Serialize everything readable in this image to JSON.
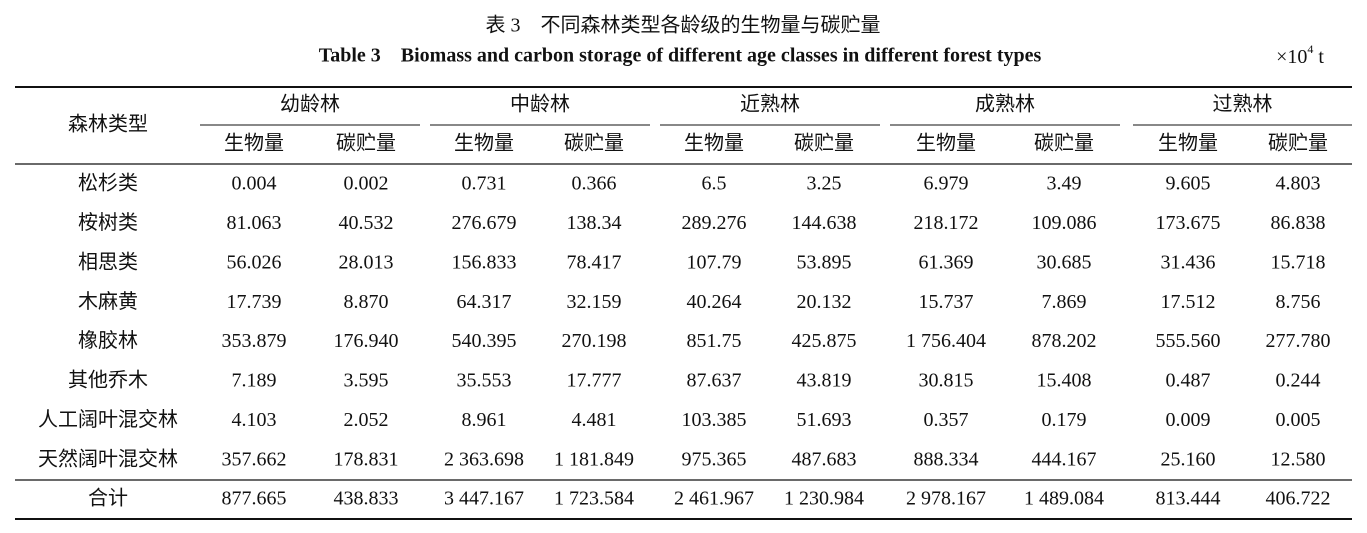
{
  "header": {
    "title": "表 3　不同森林类型各龄级的生物量与碳贮量",
    "subtitle": "Table 3　Biomass and carbon storage of different age classes in different forest types",
    "unit": {
      "prefix": "×10",
      "exponent": "4",
      "suffix": " t"
    }
  },
  "table": {
    "row_header": "森林类型",
    "groups": [
      "幼龄林",
      "中龄林",
      "近熟林",
      "成熟林",
      "过熟林"
    ],
    "subheaders": [
      "生物量",
      "碳贮量",
      "生物量",
      "碳贮量",
      "生物量",
      "碳贮量",
      "生物量",
      "碳贮量",
      "生物量",
      "碳贮量"
    ],
    "rows": [
      [
        "松杉类",
        "0.004",
        "0.002",
        "0.731",
        "0.366",
        "6.5",
        "3.25",
        "6.979",
        "3.49",
        "9.605",
        "4.803"
      ],
      [
        "桉树类",
        "81.063",
        "40.532",
        "276.679",
        "138.34",
        "289.276",
        "144.638",
        "218.172",
        "109.086",
        "173.675",
        "86.838"
      ],
      [
        "相思类",
        "56.026",
        "28.013",
        "156.833",
        "78.417",
        "107.79",
        "53.895",
        "61.369",
        "30.685",
        "31.436",
        "15.718"
      ],
      [
        "木麻黄",
        "17.739",
        "8.870",
        "64.317",
        "32.159",
        "40.264",
        "20.132",
        "15.737",
        "7.869",
        "17.512",
        "8.756"
      ],
      [
        "橡胶林",
        "353.879",
        "176.940",
        "540.395",
        "270.198",
        "851.75",
        "425.875",
        "1 756.404",
        "878.202",
        "555.560",
        "277.780"
      ],
      [
        "其他乔木",
        "7.189",
        "3.595",
        "35.553",
        "17.777",
        "87.637",
        "43.819",
        "30.815",
        "15.408",
        "0.487",
        "0.244"
      ],
      [
        "人工阔叶混交林",
        "4.103",
        "2.052",
        "8.961",
        "4.481",
        "103.385",
        "51.693",
        "0.357",
        "0.179",
        "0.009",
        "0.005"
      ],
      [
        "天然阔叶混交林",
        "357.662",
        "178.831",
        "2 363.698",
        "1 181.849",
        "975.365",
        "487.683",
        "888.334",
        "444.167",
        "25.160",
        "12.580"
      ]
    ],
    "total": [
      "合计",
      "877.665",
      "438.833",
      "3 447.167",
      "1 723.584",
      "2 461.967",
      "1 230.984",
      "2 978.167",
      "1 489.084",
      "813.444",
      "406.722"
    ]
  }
}
